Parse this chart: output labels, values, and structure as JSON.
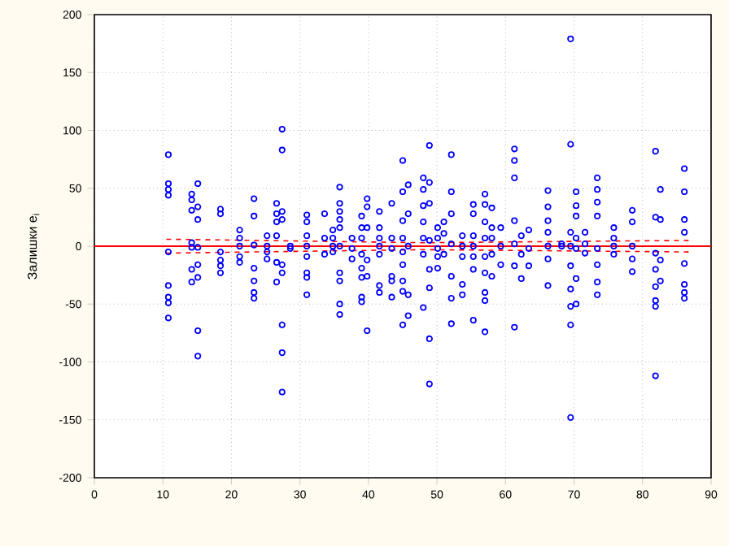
{
  "chart_data": {
    "type": "scatter",
    "ylabel": "Залишки e$_{i}$",
    "xlim": [
      0,
      90
    ],
    "ylim": [
      -200,
      200
    ],
    "xticks": [
      0,
      10,
      20,
      30,
      40,
      50,
      60,
      70,
      80,
      90
    ],
    "yticks": [
      -200,
      -150,
      -100,
      -50,
      0,
      50,
      100,
      150,
      200
    ],
    "grid": true,
    "marker": "circle",
    "ref_lines": [
      {
        "axis": "y",
        "value": 0,
        "color": "#ff0000",
        "line_style": "solid"
      }
    ],
    "series": [
      {
        "color": "#0000ff",
        "x": [
          10.8,
          10.8,
          10.8,
          10.8,
          10.8,
          10.8,
          10.8,
          10.8,
          10.8,
          14.2,
          14.2,
          14.2,
          14.2,
          14.2,
          14.2,
          14.2,
          15.1,
          15.1,
          15.1,
          15.1,
          15.1,
          15.1,
          15.1,
          15.1,
          18.4,
          18.4,
          18.4,
          18.4,
          18.4,
          18.4,
          21.2,
          21.2,
          21.2,
          21.2,
          21.2,
          23.3,
          23.3,
          23.3,
          23.3,
          23.3,
          23.3,
          23.3,
          25.2,
          25.2,
          25.2,
          25.2,
          26.6,
          26.6,
          26.6,
          26.6,
          26.6,
          26.6,
          27.4,
          27.4,
          27.4,
          27.4,
          27.4,
          27.4,
          27.4,
          27.4,
          27.4,
          28.6,
          28.6,
          31,
          31,
          31,
          31,
          31,
          31,
          31,
          31,
          33.6,
          33.6,
          33.6,
          34.8,
          34.8,
          34.8,
          34.8,
          35.8,
          35.8,
          35.8,
          35.8,
          35.8,
          35.8,
          35.8,
          35.8,
          35.8,
          35.8,
          37.6,
          37.6,
          37.6,
          39,
          39,
          39,
          39,
          39,
          39,
          39,
          39,
          39.8,
          39.8,
          39.8,
          39.8,
          39.8,
          39.8,
          41.6,
          41.6,
          41.6,
          41.6,
          41.6,
          41.6,
          41.6,
          43.4,
          43.4,
          43.4,
          43.4,
          43.4,
          43.4,
          45,
          45,
          45,
          45,
          45,
          45,
          45,
          45,
          45,
          45.8,
          45.8,
          45.8,
          45.8,
          45.8,
          48,
          48,
          48,
          48,
          48,
          48,
          48,
          48.9,
          48.9,
          48.9,
          48.9,
          48.9,
          48.9,
          48.9,
          48.9,
          50.1,
          50.1,
          50.1,
          50.1,
          50.1,
          51,
          51,
          51,
          52.1,
          52.1,
          52.1,
          52.1,
          52.1,
          52.1,
          52.1,
          53.7,
          53.7,
          53.7,
          53.7,
          53.7,
          55.3,
          55.3,
          55.3,
          55.3,
          55.3,
          55.3,
          55.3,
          57,
          57,
          57,
          57,
          57,
          57,
          57,
          57,
          57,
          58,
          58,
          58,
          58,
          58,
          59.3,
          59.3,
          59.3,
          61.3,
          61.3,
          61.3,
          61.3,
          61.3,
          61.3,
          61.3,
          62.3,
          62.3,
          62.3,
          63.4,
          63.4,
          63.4,
          66.2,
          66.2,
          66.2,
          66.2,
          66.2,
          66.2,
          66.2,
          68.2,
          68.2,
          69.5,
          69.5,
          69.5,
          69.5,
          69.5,
          69.5,
          69.5,
          69.5,
          69.5,
          70.3,
          70.3,
          70.3,
          70.3,
          70.3,
          70.3,
          70.3,
          71.6,
          71.6,
          71.6,
          73.4,
          73.4,
          73.4,
          73.4,
          73.4,
          73.4,
          73.4,
          73.4,
          75.8,
          75.8,
          75.8,
          75.8,
          78.5,
          78.5,
          78.5,
          78.5,
          78.5,
          81.9,
          81.9,
          81.9,
          81.9,
          81.9,
          81.9,
          81.9,
          81.9,
          82.6,
          82.6,
          82.6,
          82.6,
          86.1,
          86.1,
          86.1,
          86.1,
          86.1,
          86.1,
          86.1,
          86.1
        ],
        "values": [
          79,
          54,
          49,
          44,
          -5,
          -34,
          -44,
          -49,
          -62,
          45,
          40,
          31,
          3,
          -1,
          -20,
          -31,
          54,
          34,
          23,
          -1,
          -16,
          -27,
          -73,
          -95,
          32,
          28,
          -5,
          -12,
          -17,
          -23,
          14,
          7,
          0,
          -9,
          -14,
          41,
          26,
          1,
          -19,
          -30,
          -40,
          -45,
          9,
          0,
          -5,
          -11,
          37,
          28,
          21,
          9,
          -14,
          -31,
          101,
          83,
          30,
          23,
          -16,
          -23,
          -68,
          -92,
          -126,
          0,
          -2,
          27,
          21,
          9,
          0,
          -9,
          -23,
          -27,
          -42,
          28,
          7,
          -7,
          14,
          7,
          0,
          -5,
          51,
          37,
          30,
          23,
          16,
          0,
          -23,
          -30,
          -50,
          -59,
          7,
          -2,
          -11,
          26,
          16,
          7,
          -7,
          -19,
          -27,
          -44,
          -48,
          41,
          34,
          16,
          -12,
          -26,
          -73,
          30,
          16,
          7,
          0,
          -7,
          -34,
          -40,
          37,
          7,
          -2,
          -26,
          -30,
          -44,
          74,
          47,
          22,
          7,
          -5,
          -16,
          -30,
          -39,
          -68,
          53,
          28,
          0,
          -42,
          -60,
          59,
          49,
          35,
          21,
          7,
          -7,
          -53,
          87,
          55,
          37,
          5,
          -20,
          -36,
          -80,
          -119,
          16,
          7,
          -2,
          -9,
          -19,
          21,
          11,
          -7,
          79,
          47,
          28,
          2,
          -26,
          -45,
          -67,
          9,
          0,
          -9,
          -33,
          -42,
          36,
          28,
          9,
          0,
          -9,
          -20,
          -64,
          45,
          36,
          21,
          7,
          -9,
          -23,
          -40,
          -47,
          -74,
          33,
          16,
          7,
          -7,
          -26,
          16,
          0,
          -16,
          84,
          74,
          59,
          22,
          2,
          -17,
          -70,
          9,
          -7,
          -28,
          14,
          -2,
          -17,
          48,
          34,
          22,
          12,
          0,
          -11,
          -34,
          2,
          0,
          179,
          88,
          12,
          0,
          -17,
          -37,
          -52,
          -68,
          -148,
          47,
          35,
          26,
          7,
          -2,
          -28,
          -50,
          12,
          2,
          -6,
          59,
          49,
          38,
          26,
          -2,
          -16,
          -31,
          -42,
          16,
          7,
          0,
          -7,
          31,
          21,
          0,
          -11,
          -22,
          82,
          25,
          -6,
          -20,
          -35,
          -47,
          -52,
          -112,
          49,
          23,
          -12,
          -30,
          67,
          47,
          23,
          12,
          -15,
          -33,
          -40,
          -45
        ]
      },
      {
        "type": "line",
        "color": "#ff0000",
        "line_style": "dashed",
        "marker": "none",
        "x": [
          10.5,
          48,
          87
        ],
        "values": [
          6,
          3,
          5
        ]
      },
      {
        "type": "line",
        "color": "#ff0000",
        "line_style": "dashed",
        "marker": "none",
        "x": [
          10.5,
          48,
          87
        ],
        "values": [
          -6,
          -3,
          -5
        ]
      }
    ]
  }
}
